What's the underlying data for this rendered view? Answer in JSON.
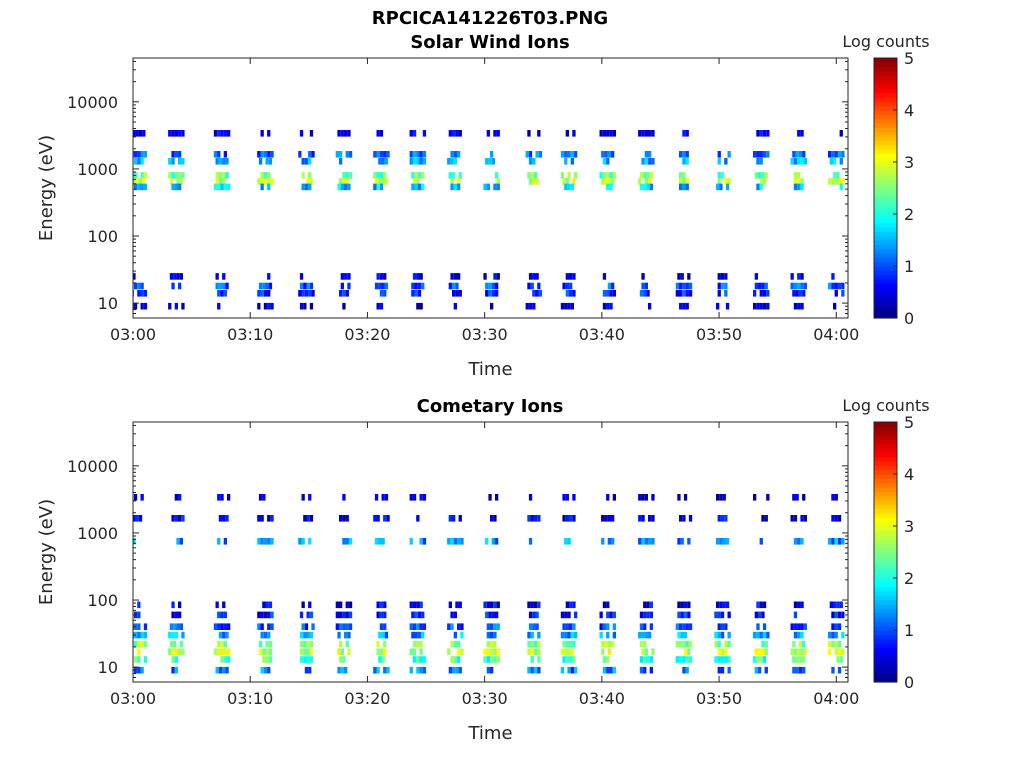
{
  "figure_title": "RPCICA141226T03.PNG",
  "chart_data": [
    {
      "type": "heatmap",
      "title": "Solar Wind Ions",
      "xlabel": "Time",
      "ylabel": "Energy (eV)",
      "y_scale": "log",
      "ylim": [
        6,
        45000
      ],
      "xlim": [
        "03:00",
        "04:01"
      ],
      "x_ticks": [
        "03:00",
        "03:10",
        "03:20",
        "03:30",
        "03:40",
        "03:50",
        "04:00"
      ],
      "y_ticks": [
        "10",
        "100",
        "1000",
        "10000"
      ],
      "colorbar": {
        "label": "Log counts",
        "ticks": [
          "0",
          "1",
          "2",
          "3",
          "4",
          "5"
        ],
        "range": [
          0,
          5
        ],
        "colormap": "jet"
      },
      "grid": false,
      "sweep_times_min": [
        0.5,
        3.7,
        7.6,
        11.3,
        14.8,
        18.0,
        21.2,
        24.3,
        27.5,
        30.6,
        34.2,
        37.2,
        40.5,
        43.8,
        47.0,
        50.3,
        53.6,
        56.8,
        60.0
      ],
      "bands": [
        {
          "energy_eV": 3400,
          "log_counts": 0.4
        },
        {
          "energy_eV": 1650,
          "log_counts": 1.1
        },
        {
          "energy_eV": 1300,
          "log_counts": 1.4
        },
        {
          "energy_eV": 800,
          "log_counts": 2.4
        },
        {
          "energy_eV": 650,
          "log_counts": 2.8
        },
        {
          "energy_eV": 540,
          "log_counts": 1.6
        },
        {
          "energy_eV": 25,
          "log_counts": 0.4
        },
        {
          "energy_eV": 18,
          "log_counts": 1.0
        },
        {
          "energy_eV": 14,
          "log_counts": 0.8
        },
        {
          "energy_eV": 9,
          "log_counts": 0.3
        }
      ]
    },
    {
      "type": "heatmap",
      "title": "Cometary Ions",
      "xlabel": "Time",
      "ylabel": "Energy (eV)",
      "y_scale": "log",
      "ylim": [
        6,
        45000
      ],
      "xlim": [
        "03:00",
        "04:01"
      ],
      "x_ticks": [
        "03:00",
        "03:10",
        "03:20",
        "03:30",
        "03:40",
        "03:50",
        "04:00"
      ],
      "y_ticks": [
        "10",
        "100",
        "1000",
        "10000"
      ],
      "colorbar": {
        "label": "Log counts",
        "ticks": [
          "0",
          "1",
          "2",
          "3",
          "4",
          "5"
        ],
        "range": [
          0,
          5
        ],
        "colormap": "jet"
      },
      "grid": false,
      "sweep_times_min": [
        0.5,
        3.7,
        7.6,
        11.3,
        14.8,
        18.0,
        21.2,
        24.3,
        27.5,
        30.6,
        34.2,
        37.2,
        40.5,
        43.8,
        47.0,
        50.3,
        53.6,
        56.8,
        60.0
      ],
      "bands": [
        {
          "energy_eV": 3400,
          "log_counts": 0.3
        },
        {
          "energy_eV": 1650,
          "log_counts": 0.5
        },
        {
          "energy_eV": 750,
          "log_counts": 1.3
        },
        {
          "energy_eV": 85,
          "log_counts": 0.5
        },
        {
          "energy_eV": 60,
          "log_counts": 0.7
        },
        {
          "energy_eV": 40,
          "log_counts": 1.0
        },
        {
          "energy_eV": 30,
          "log_counts": 1.4
        },
        {
          "energy_eV": 22,
          "log_counts": 2.5
        },
        {
          "energy_eV": 17,
          "log_counts": 2.8
        },
        {
          "energy_eV": 13,
          "log_counts": 2.2
        },
        {
          "energy_eV": 9,
          "log_counts": 1.2
        }
      ]
    }
  ]
}
